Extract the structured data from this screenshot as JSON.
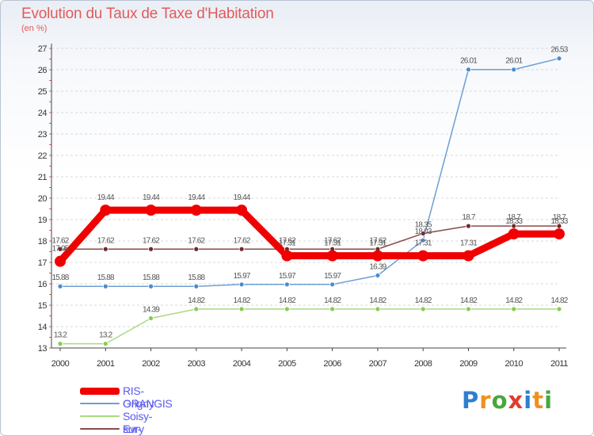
{
  "header": {
    "title": "Evolution du Taux de Taxe d'Habitation",
    "subtitle": "(en %)"
  },
  "logo": {
    "letters": [
      "P",
      "r",
      "o",
      "x",
      "i",
      "t",
      "i"
    ],
    "colors": [
      "#2f7fd0",
      "#f0901c",
      "#46a83c",
      "#e03c32",
      "#2f7fd0",
      "#f0901c",
      "#46a83c"
    ]
  },
  "chart_data": {
    "type": "line",
    "title": "Evolution du Taux de Taxe d'Habitation",
    "ylabel": "(en %)",
    "xlabel": "",
    "x": [
      "2000",
      "2001",
      "2002",
      "2003",
      "2004",
      "2005",
      "2006",
      "2007",
      "2008",
      "2009",
      "2010",
      "2011"
    ],
    "ylim": [
      13,
      27
    ],
    "yticks": [
      "13",
      "14",
      "15",
      "16",
      "17",
      "18",
      "19",
      "20",
      "21",
      "22",
      "23",
      "24",
      "25",
      "26",
      "27"
    ],
    "grid": "horizontal",
    "legend_position": "bottom-left",
    "series": [
      {
        "name": "RIS-ORANGIS",
        "color": "#f00000",
        "values": [
          17.05,
          19.44,
          19.44,
          19.44,
          19.44,
          17.31,
          17.31,
          17.31,
          17.31,
          17.31,
          18.33,
          18.33
        ],
        "labels": [
          "17.05",
          "19.44",
          "19.44",
          "19.44",
          "19.44",
          "17.31",
          "17.31",
          "17.31",
          "17.31",
          "17.31",
          "18.33",
          "18.33"
        ]
      },
      {
        "name": "Grigny",
        "color": "#6b9fd3",
        "values": [
          15.88,
          15.88,
          15.88,
          15.88,
          15.97,
          15.97,
          15.97,
          16.39,
          18.03,
          26.01,
          26.01,
          26.53
        ],
        "labels": [
          "15.88",
          "15.88",
          "15.88",
          "15.88",
          "15.97",
          "15.97",
          "15.97",
          "16.39",
          "18.03",
          "26.01",
          "26.01",
          "26.53"
        ]
      },
      {
        "name": "Soisy-sur-Seine",
        "color": "#a8da7e",
        "values": [
          13.2,
          13.2,
          14.39,
          14.82,
          14.82,
          14.82,
          14.82,
          14.82,
          14.82,
          14.82,
          14.82,
          14.82
        ],
        "labels": [
          "13.2",
          "13.2",
          "14.39",
          "14.82",
          "14.82",
          "14.82",
          "14.82",
          "14.82",
          "14.82",
          "14.82",
          "14.82",
          "14.82"
        ]
      },
      {
        "name": "Evry",
        "color": "#8a4a4a",
        "values": [
          17.62,
          17.62,
          17.62,
          17.62,
          17.62,
          17.62,
          17.62,
          17.62,
          18.35,
          18.7,
          18.7,
          18.7
        ],
        "labels": [
          "17.62",
          "17.62",
          "17.62",
          "17.62",
          "17.62",
          "17.62",
          "17.62",
          "17.62",
          "18.35",
          "18.7",
          "18.7",
          "18.7"
        ]
      }
    ]
  }
}
